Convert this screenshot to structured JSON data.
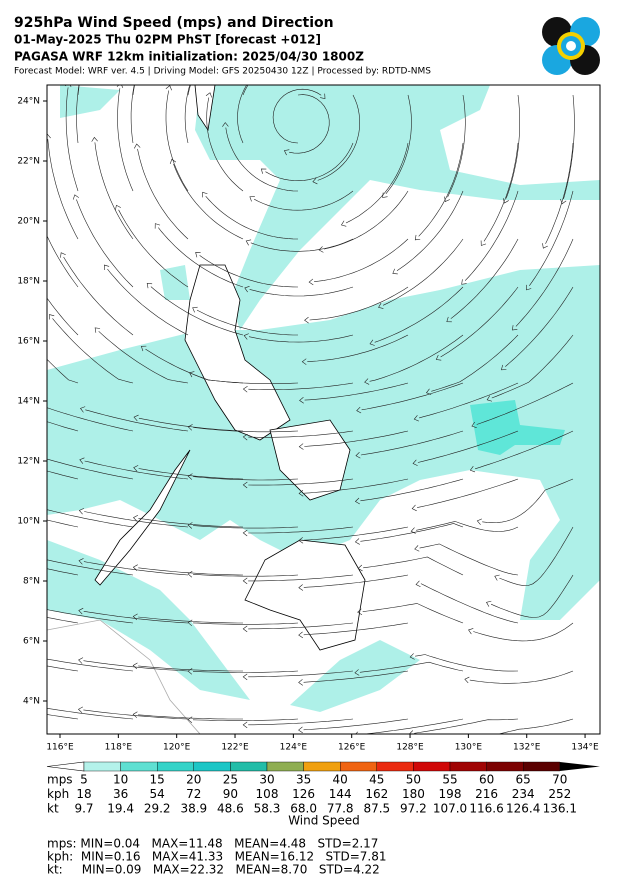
{
  "header": {
    "title": "925hPa Wind Speed (mps) and Direction",
    "subtitle": "01-May-2025 Thu 02PM PhST [forecast +012]",
    "init": "PAGASA WRF 12km initialization: 2025/04/30 1800Z",
    "info": "Forecast Model: WRF ver. 4.5 | Driving Model: GFS 20250430 12Z | Processed by: RDTD-NMS"
  },
  "map": {
    "xticks": [
      {
        "value": 116,
        "label": "116°E"
      },
      {
        "value": 118,
        "label": "118°E"
      },
      {
        "value": 120,
        "label": "120°E"
      },
      {
        "value": 122,
        "label": "122°E"
      },
      {
        "value": 124,
        "label": "124°E"
      },
      {
        "value": 126,
        "label": "126°E"
      },
      {
        "value": 128,
        "label": "128°E"
      },
      {
        "value": 130,
        "label": "130°E"
      },
      {
        "value": 132,
        "label": "132°E"
      },
      {
        "value": 134,
        "label": "134°E"
      }
    ],
    "yticks": [
      {
        "value": 24,
        "label": "24°N"
      },
      {
        "value": 22,
        "label": "22°N"
      },
      {
        "value": 20,
        "label": "20°N"
      },
      {
        "value": 18,
        "label": "18°N"
      },
      {
        "value": 16,
        "label": "16°N"
      },
      {
        "value": 14,
        "label": "14°N"
      },
      {
        "value": 12,
        "label": "12°N"
      },
      {
        "value": 10,
        "label": "10°N"
      },
      {
        "value": 8,
        "label": "8°N"
      },
      {
        "value": 6,
        "label": "6°N"
      },
      {
        "value": 4,
        "label": "4°N"
      }
    ]
  },
  "colorbar": {
    "colors": [
      "#ffffff",
      "#b4f2ea",
      "#5fe0d2",
      "#34d3c8",
      "#1cc6c6",
      "#22bda8",
      "#8fae52",
      "#f0a010",
      "#f06412",
      "#ea2a10",
      "#d00808",
      "#a00404",
      "#7c0202",
      "#5a0000",
      "#000000"
    ],
    "row_names": [
      "mps",
      "kph",
      "kt"
    ],
    "rows": [
      [
        "5",
        "10",
        "15",
        "20",
        "25",
        "30",
        "35",
        "40",
        "45",
        "50",
        "55",
        "60",
        "65",
        "70"
      ],
      [
        "18",
        "36",
        "54",
        "72",
        "90",
        "108",
        "126",
        "144",
        "162",
        "180",
        "198",
        "216",
        "234",
        "252"
      ],
      [
        "9.7",
        "19.4",
        "29.2",
        "38.9",
        "48.6",
        "58.3",
        "68.0",
        "77.8",
        "87.5",
        "97.2",
        "107.0",
        "116.6",
        "126.4",
        "136.1"
      ]
    ],
    "label": "Wind Speed"
  },
  "stats": [
    "mps: MIN=0.04   MAX=11.48   MEAN=4.48   STD=2.17",
    "kph:  MIN=0.16   MAX=41.33   MEAN=16.12   STD=7.81",
    "kt:     MIN=0.09   MAX=22.32   MEAN=8.70   STD=4.22"
  ]
}
